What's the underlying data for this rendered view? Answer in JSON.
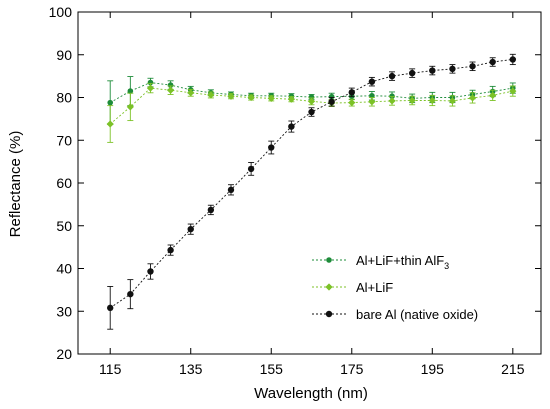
{
  "chart_data": {
    "type": "line",
    "xlabel": "Wavelength (nm)",
    "ylabel": "Reflectance (%)",
    "xlim": [
      107,
      222
    ],
    "ylim": [
      20,
      100
    ],
    "xticks": [
      115,
      135,
      155,
      175,
      195,
      215
    ],
    "yticks": [
      20,
      30,
      40,
      50,
      60,
      70,
      80,
      90,
      100
    ],
    "grid": false,
    "legend_position": "lower-right",
    "series": [
      {
        "name": "Al+LiF+thin AlF",
        "name_sub": "3",
        "color": "#1e8c3a",
        "x": [
          115,
          120,
          125,
          130,
          135,
          140,
          145,
          150,
          155,
          160,
          165,
          170,
          175,
          180,
          185,
          190,
          195,
          200,
          205,
          210,
          215
        ],
        "y": [
          78.8,
          81.5,
          83.5,
          82.9,
          81.8,
          81.1,
          80.7,
          80.4,
          80.4,
          80.3,
          80.1,
          80.2,
          80.3,
          80.4,
          80.3,
          79.8,
          80.0,
          80.0,
          80.7,
          81.4,
          82.2
        ],
        "err": [
          5.1,
          3.4,
          1.0,
          1.0,
          0.8,
          0.7,
          0.6,
          0.6,
          0.6,
          0.6,
          0.6,
          0.8,
          0.8,
          1.0,
          1.0,
          1.0,
          1.2,
          1.2,
          1.0,
          1.2,
          1.2
        ]
      },
      {
        "name": "Al+LiF",
        "color": "#7cc227",
        "x": [
          115,
          120,
          125,
          130,
          135,
          140,
          145,
          150,
          155,
          160,
          165,
          170,
          175,
          180,
          185,
          190,
          195,
          200,
          205,
          210,
          215
        ],
        "y": [
          73.8,
          77.8,
          82.2,
          81.7,
          81.1,
          80.6,
          80.3,
          80.0,
          79.8,
          79.6,
          79.1,
          78.7,
          78.8,
          79.0,
          79.2,
          79.3,
          79.3,
          79.2,
          79.9,
          80.5,
          81.5
        ],
        "err": [
          4.3,
          3.2,
          1.1,
          1.0,
          0.8,
          0.7,
          0.6,
          0.6,
          0.6,
          0.6,
          0.8,
          0.8,
          0.8,
          1.0,
          1.0,
          1.0,
          1.2,
          1.2,
          1.2,
          1.2,
          1.2
        ]
      },
      {
        "name": "bare Al (native oxide)",
        "color": "#111111",
        "x": [
          115,
          120,
          125,
          130,
          135,
          140,
          145,
          150,
          155,
          160,
          165,
          170,
          175,
          180,
          185,
          190,
          195,
          200,
          205,
          210,
          215
        ],
        "y": [
          30.8,
          34.0,
          39.3,
          44.3,
          49.2,
          53.7,
          58.4,
          63.3,
          68.3,
          73.2,
          76.6,
          79.0,
          81.2,
          83.7,
          85.0,
          85.7,
          86.3,
          86.7,
          87.3,
          88.3,
          88.9
        ],
        "err": [
          5.0,
          3.4,
          1.8,
          1.2,
          1.2,
          1.1,
          1.2,
          1.5,
          1.5,
          1.3,
          1.0,
          1.0,
          1.0,
          1.0,
          1.0,
          1.0,
          1.0,
          1.0,
          1.0,
          1.0,
          1.2
        ]
      }
    ]
  }
}
